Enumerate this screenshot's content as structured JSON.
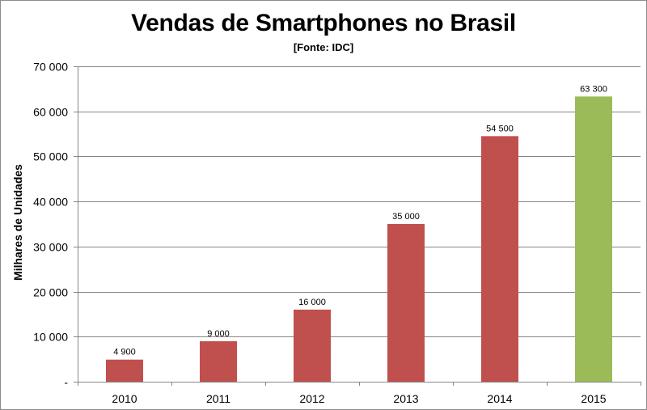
{
  "chart_data": {
    "type": "bar",
    "title": "Vendas de Smartphones no Brasil",
    "subtitle": "[Fonte: IDC]",
    "xlabel": "",
    "ylabel": "Milhares de Unidades",
    "categories": [
      "2010",
      "2011",
      "2012",
      "2013",
      "2014",
      "2015"
    ],
    "values": [
      4900,
      9000,
      16000,
      35000,
      54500,
      63300
    ],
    "data_labels": [
      "4 900",
      "9 000",
      "16 000",
      "35 000",
      "54 500",
      "63 300"
    ],
    "bar_colors": [
      "#c0504d",
      "#c0504d",
      "#c0504d",
      "#c0504d",
      "#c0504d",
      "#9bbb59"
    ],
    "ylim": [
      0,
      70000
    ],
    "yticks": [
      0,
      10000,
      20000,
      30000,
      40000,
      50000,
      60000,
      70000
    ],
    "ytick_labels": [
      "-",
      "10 000",
      "20 000",
      "30 000",
      "40 000",
      "50 000",
      "60 000",
      "70 000"
    ],
    "grid": true,
    "legend": "none"
  }
}
